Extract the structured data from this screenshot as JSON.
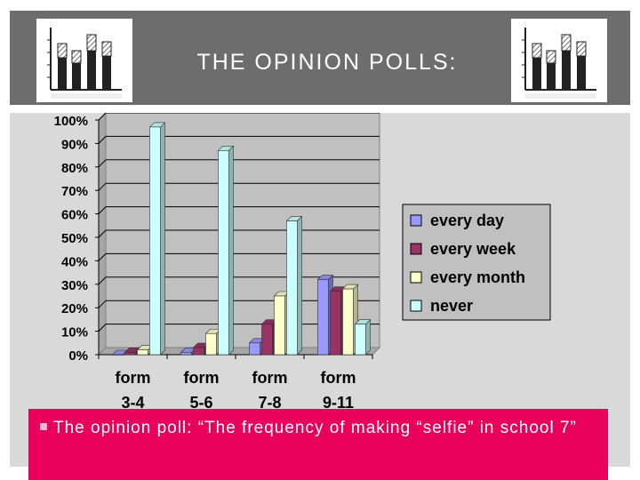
{
  "slide": {
    "title": "THE OPINION POLLS:",
    "caption": "The opinion poll: “The frequency of making “selfie” in school 7”"
  },
  "logo_icon": "bar-chart-icon",
  "colors": {
    "header": "#6d6d6d",
    "caption_box": "#e8005a",
    "plot_bg": "#c0c0c0"
  },
  "chart_data": {
    "type": "bar",
    "categories": [
      [
        "form",
        "3-4"
      ],
      [
        "form",
        "5-6"
      ],
      [
        "form",
        "7-8"
      ],
      [
        "form",
        "9-11"
      ]
    ],
    "series": [
      {
        "name": "every day",
        "values": [
          0,
          1,
          5,
          32
        ],
        "color": "#9999ff"
      },
      {
        "name": "every week",
        "values": [
          1,
          3,
          13,
          27
        ],
        "color": "#993366"
      },
      {
        "name": "every month",
        "values": [
          2,
          9,
          25,
          28
        ],
        "color": "#ffffcc"
      },
      {
        "name": "never",
        "values": [
          97,
          87,
          57,
          13
        ],
        "color": "#ccffff"
      }
    ],
    "yticks": [
      "0%",
      "10%",
      "20%",
      "30%",
      "40%",
      "50%",
      "60%",
      "70%",
      "80%",
      "90%",
      "100%"
    ],
    "ylim": [
      0,
      100
    ],
    "legend_position": "right",
    "grid": true
  }
}
